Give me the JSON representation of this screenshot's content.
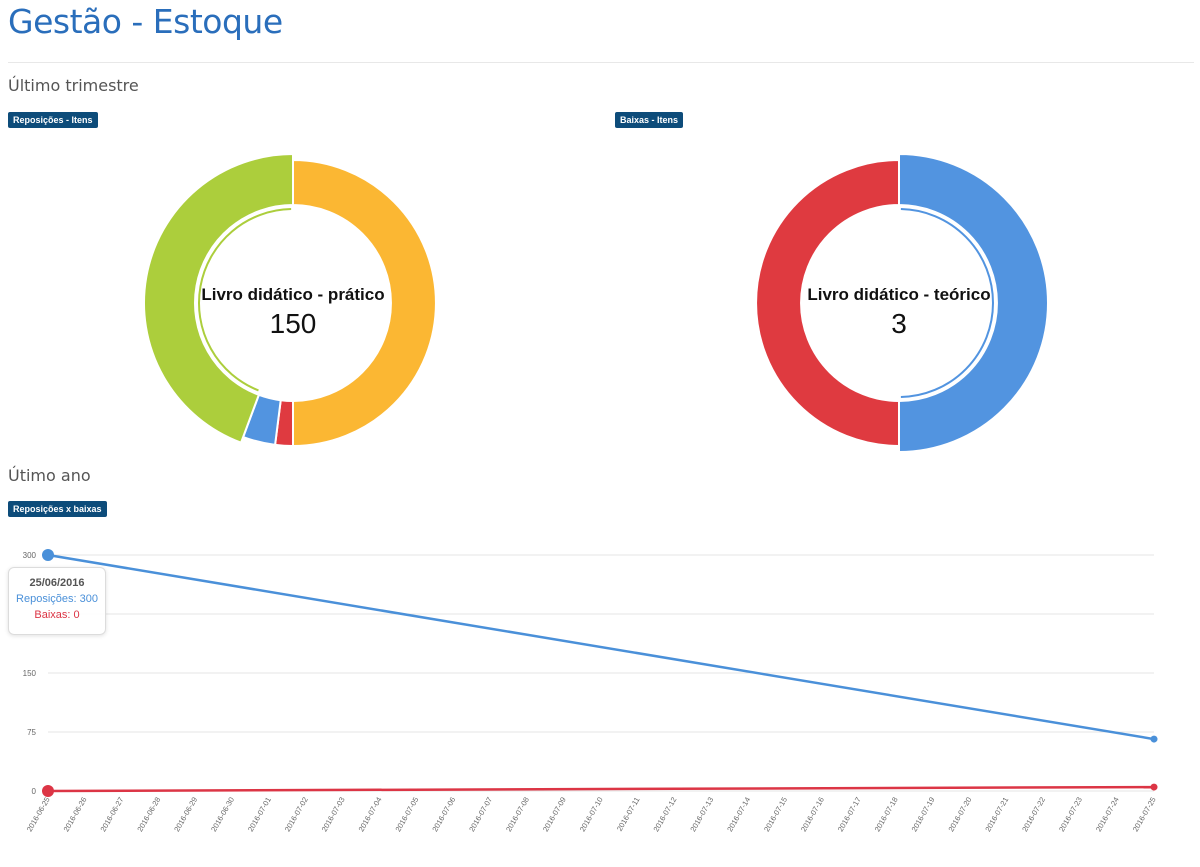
{
  "page": {
    "title": "Gestão - Estoque"
  },
  "sections": {
    "quarter_title": "Último trimestre",
    "year_title": "Útimo ano"
  },
  "badges": {
    "replenishment": "Reposições - Itens",
    "writeoffs": "Baixas - Itens",
    "line": "Reposições x baixas"
  },
  "colors": {
    "title": "#2a6ebb",
    "badge": "#0d4c7a",
    "green": "#acce3c",
    "yellow": "#fbb733",
    "blue": "#5294e0",
    "red": "#df3a40"
  },
  "chart_data": [
    {
      "type": "pie",
      "variant": "donut",
      "center_label": "Livro didático - prático",
      "center_value": "150",
      "slices": [
        {
          "value": 150,
          "color": "#fbb733"
        },
        {
          "value": 6,
          "color": "#df3a40"
        },
        {
          "value": 11,
          "color": "#5294e0"
        },
        {
          "value": 133,
          "color": "#acce3c"
        }
      ],
      "highlighted_slice": 3
    },
    {
      "type": "pie",
      "variant": "donut",
      "center_label": "Livro didático - teórico",
      "center_value": "3",
      "slices": [
        {
          "value": 3,
          "color": "#5294e0"
        },
        {
          "value": 3,
          "color": "#df3a40"
        }
      ],
      "highlighted_slice": 0
    },
    {
      "type": "line",
      "y_ticks": [
        0,
        75,
        150,
        300
      ],
      "ylim": [
        0,
        300
      ],
      "grid": true,
      "x": [
        "2016-06-25",
        "2016-06-26",
        "2016-06-27",
        "2016-06-28",
        "2016-06-29",
        "2016-06-30",
        "2016-07-01",
        "2016-07-02",
        "2016-07-03",
        "2016-07-04",
        "2016-07-05",
        "2016-07-06",
        "2016-07-07",
        "2016-07-08",
        "2016-07-09",
        "2016-07-10",
        "2016-07-11",
        "2016-07-12",
        "2016-07-13",
        "2016-07-14",
        "2016-07-15",
        "2016-07-16",
        "2016-07-17",
        "2016-07-18",
        "2016-07-19",
        "2016-07-20",
        "2016-07-21",
        "2016-07-22",
        "2016-07-23",
        "2016-07-24",
        "2016-07-25"
      ],
      "series": [
        {
          "name": "Reposições",
          "color": "#4a90d9",
          "points": [
            {
              "x": "2016-06-25",
              "y": 300
            },
            {
              "x": "2016-07-25",
              "y": 66
            }
          ]
        },
        {
          "name": "Baixas",
          "color": "#dc3545",
          "points": [
            {
              "x": "2016-06-25",
              "y": 0
            },
            {
              "x": "2016-07-25",
              "y": 5
            }
          ]
        }
      ],
      "tooltip": {
        "date": "25/06/2016",
        "replenishment_label": "Reposições: 300",
        "writeoffs_label": "Baixas: 0"
      }
    }
  ]
}
